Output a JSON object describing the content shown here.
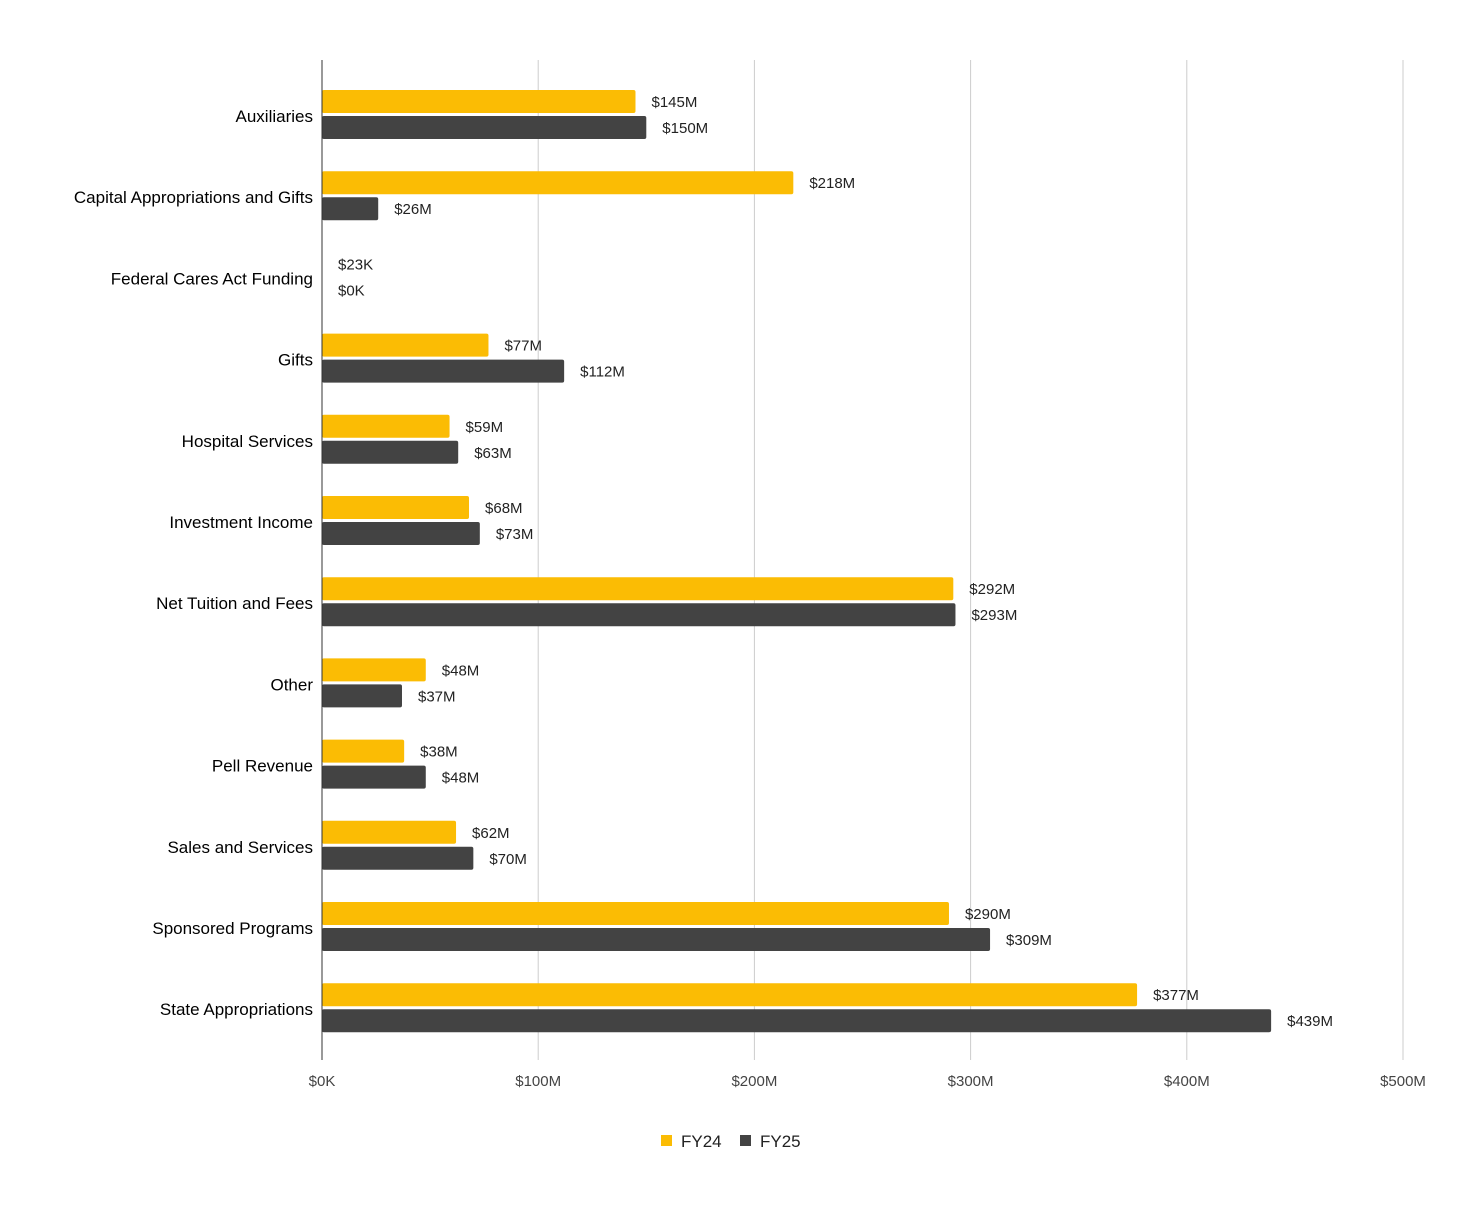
{
  "chart_data": {
    "type": "bar",
    "orientation": "horizontal",
    "title": "",
    "xlabel": "",
    "ylabel": "",
    "xlim": [
      0,
      500
    ],
    "unit": "$M",
    "grid": true,
    "legend_position": "bottom",
    "x_ticks": [
      0,
      100,
      200,
      300,
      400,
      500
    ],
    "x_tick_labels": [
      "$0K",
      "$100M",
      "$200M",
      "$300M",
      "$400M",
      "$500M"
    ],
    "categories": [
      "Auxiliaries",
      "Capital Appropriations and Gifts",
      "Federal Cares Act Funding",
      "Gifts",
      "Hospital Services",
      "Investment Income",
      "Net Tuition and Fees",
      "Other",
      "Pell Revenue",
      "Sales and Services",
      "Sponsored Programs",
      "State Appropriations"
    ],
    "series": [
      {
        "name": "FY24",
        "color": "#fbbc04",
        "values": [
          145,
          218,
          0.023,
          77,
          59,
          68,
          292,
          48,
          38,
          62,
          290,
          377
        ],
        "labels": [
          "$145M",
          "$218M",
          "$23K",
          "$77M",
          "$59M",
          "$68M",
          "$292M",
          "$48M",
          "$38M",
          "$62M",
          "$290M",
          "$377M"
        ]
      },
      {
        "name": "FY25",
        "color": "#434343",
        "values": [
          150,
          26,
          0,
          112,
          63,
          73,
          293,
          37,
          48,
          70,
          309,
          439
        ],
        "labels": [
          "$150M",
          "$26M",
          "$0K",
          "$112M",
          "$63M",
          "$73M",
          "$293M",
          "$37M",
          "$48M",
          "$70M",
          "$309M",
          "$439M"
        ]
      }
    ]
  }
}
